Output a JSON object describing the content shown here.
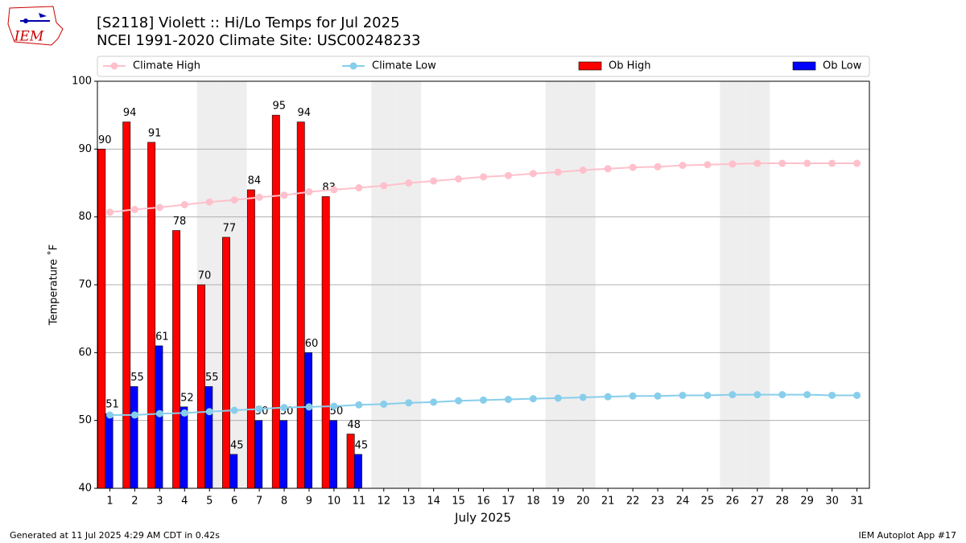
{
  "chart_data": {
    "type": "bar",
    "title": "[S2118] Violett :: Hi/Lo Temps for Jul 2025",
    "subtitle": "NCEI 1991-2020 Climate Site: USC00248233",
    "xlabel": "July 2025",
    "ylabel": "Temperature ˚F",
    "footer_left": "Generated at 11 Jul 2025 4:29 AM CDT in 0.42s",
    "footer_right": "IEM Autoplot App #17",
    "logo_text": "IEM",
    "x": [
      1,
      2,
      3,
      4,
      5,
      6,
      7,
      8,
      9,
      10,
      11,
      12,
      13,
      14,
      15,
      16,
      17,
      18,
      19,
      20,
      21,
      22,
      23,
      24,
      25,
      26,
      27,
      28,
      29,
      30,
      31
    ],
    "xlim": [
      0.5,
      31.5
    ],
    "xticks": [
      1,
      2,
      3,
      4,
      5,
      6,
      7,
      8,
      9,
      10,
      11,
      12,
      13,
      14,
      15,
      16,
      17,
      18,
      19,
      20,
      21,
      22,
      23,
      24,
      25,
      26,
      27,
      28,
      29,
      30,
      31
    ],
    "ylim": [
      40,
      100
    ],
    "yticks": [
      40,
      50,
      60,
      70,
      80,
      90,
      100
    ],
    "grid": true,
    "shaded_days": [
      5,
      6,
      12,
      13,
      19,
      20,
      26,
      27
    ],
    "series": [
      {
        "name": "Climate High",
        "type": "line",
        "color": "#ffc0cb",
        "values": [
          80.7,
          81.1,
          81.4,
          81.8,
          82.2,
          82.5,
          82.9,
          83.2,
          83.7,
          84.0,
          84.3,
          84.6,
          85.0,
          85.3,
          85.6,
          85.9,
          86.1,
          86.4,
          86.6,
          86.9,
          87.1,
          87.3,
          87.4,
          87.6,
          87.7,
          87.8,
          87.9,
          87.9,
          87.9,
          87.9,
          87.9
        ]
      },
      {
        "name": "Climate Low",
        "type": "line",
        "color": "#87ceeb",
        "values": [
          50.8,
          50.8,
          51.0,
          51.1,
          51.3,
          51.5,
          51.7,
          51.9,
          52.0,
          52.1,
          52.3,
          52.4,
          52.6,
          52.7,
          52.9,
          53.0,
          53.1,
          53.2,
          53.3,
          53.4,
          53.5,
          53.6,
          53.6,
          53.7,
          53.7,
          53.8,
          53.8,
          53.8,
          53.8,
          53.7,
          53.7
        ]
      },
      {
        "name": "Ob High",
        "type": "bar",
        "color": "#ff0000",
        "values": [
          90,
          94,
          91,
          78,
          70,
          77,
          84,
          95,
          94,
          83,
          48,
          null,
          null,
          null,
          null,
          null,
          null,
          null,
          null,
          null,
          null,
          null,
          null,
          null,
          null,
          null,
          null,
          null,
          null,
          null,
          null
        ]
      },
      {
        "name": "Ob Low",
        "type": "bar",
        "color": "#0000ff",
        "values": [
          51,
          55,
          61,
          52,
          55,
          45,
          50,
          50,
          60,
          50,
          45,
          null,
          null,
          null,
          null,
          null,
          null,
          null,
          null,
          null,
          null,
          null,
          null,
          null,
          null,
          null,
          null,
          null,
          null,
          null,
          null
        ]
      }
    ]
  }
}
